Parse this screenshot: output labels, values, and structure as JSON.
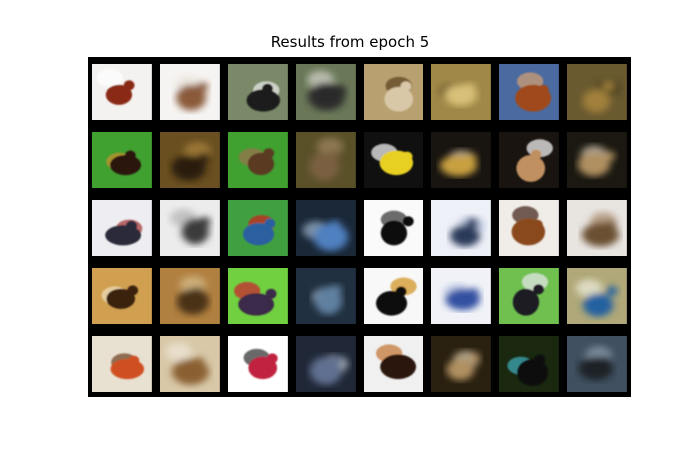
{
  "title": "Results from epoch 5",
  "colors": {
    "figure_background": "#ffffff",
    "grid_background": "#000000",
    "title_text": "#000000"
  },
  "grid": {
    "rows": 5,
    "cols": 8,
    "description_pairs": "each row alternates original image then reconstructed (blurred) image"
  },
  "tiles": [
    {
      "row": 0,
      "col": 0,
      "subject": "brown-horse-on-white",
      "kind": "original",
      "bg": "#f4f2f0",
      "fg": "#8a2a18",
      "accent": "#ffffff"
    },
    {
      "row": 0,
      "col": 1,
      "subject": "brown-horse-on-white",
      "kind": "reconstruction",
      "bg": "#f6f4f2",
      "fg": "#8a5a3a",
      "accent": "#e8e2da"
    },
    {
      "row": 0,
      "col": 2,
      "subject": "bird-on-branch",
      "kind": "original",
      "bg": "#7a8a68",
      "fg": "#1a1a1a",
      "accent": "#f0f0f0"
    },
    {
      "row": 0,
      "col": 3,
      "subject": "bird-on-branch",
      "kind": "reconstruction",
      "bg": "#6a7858",
      "fg": "#2a2a2a",
      "accent": "#d8d8d0"
    },
    {
      "row": 0,
      "col": 4,
      "subject": "small-bird",
      "kind": "original",
      "bg": "#b8a070",
      "fg": "#d8c8a8",
      "accent": "#5a4020"
    },
    {
      "row": 0,
      "col": 5,
      "subject": "small-bird",
      "kind": "reconstruction",
      "bg": "#a08848",
      "fg": "#d8c078",
      "accent": "#5a4a20"
    },
    {
      "row": 0,
      "col": 6,
      "subject": "deer",
      "kind": "original",
      "bg": "#4a6aa0",
      "fg": "#a04a1a",
      "accent": "#d8a070"
    },
    {
      "row": 0,
      "col": 7,
      "subject": "deer",
      "kind": "reconstruction",
      "bg": "#6a5a30",
      "fg": "#a0803a",
      "accent": "#403818"
    },
    {
      "row": 1,
      "col": 0,
      "subject": "turkey",
      "kind": "original",
      "bg": "#40a030",
      "fg": "#2a1810",
      "accent": "#d09030"
    },
    {
      "row": 1,
      "col": 1,
      "subject": "turkey",
      "kind": "reconstruction",
      "bg": "#6a5020",
      "fg": "#2a1a10",
      "accent": "#b08840"
    },
    {
      "row": 1,
      "col": 2,
      "subject": "owl-in-grass",
      "kind": "original",
      "bg": "#40a030",
      "fg": "#5a3a20",
      "accent": "#a07050"
    },
    {
      "row": 1,
      "col": 3,
      "subject": "owl-in-grass",
      "kind": "reconstruction",
      "bg": "#5a5028",
      "fg": "#7a6040",
      "accent": "#a08860"
    },
    {
      "row": 1,
      "col": 4,
      "subject": "yellow-bird",
      "kind": "original",
      "bg": "#101010",
      "fg": "#e8d020",
      "accent": "#ffffff"
    },
    {
      "row": 1,
      "col": 5,
      "subject": "yellow-bird",
      "kind": "reconstruction",
      "bg": "#181410",
      "fg": "#c8a040",
      "accent": "#e0d0b0"
    },
    {
      "row": 1,
      "col": 6,
      "subject": "bird-dark",
      "kind": "original",
      "bg": "#1a1410",
      "fg": "#c09060",
      "accent": "#ffffff"
    },
    {
      "row": 1,
      "col": 7,
      "subject": "bird-dark",
      "kind": "reconstruction",
      "bg": "#1a1810",
      "fg": "#b09060",
      "accent": "#e0d0b8"
    },
    {
      "row": 2,
      "col": 0,
      "subject": "bird-on-white",
      "kind": "original",
      "bg": "#eeeef2",
      "fg": "#2a2a3a",
      "accent": "#a03030"
    },
    {
      "row": 2,
      "col": 1,
      "subject": "bird-on-white",
      "kind": "reconstruction",
      "bg": "#ececec",
      "fg": "#3a3a3a",
      "accent": "#b0b0b0"
    },
    {
      "row": 2,
      "col": 2,
      "subject": "blue-bird",
      "kind": "original",
      "bg": "#40a040",
      "fg": "#2a60a0",
      "accent": "#d02020"
    },
    {
      "row": 2,
      "col": 3,
      "subject": "blue-bird",
      "kind": "reconstruction",
      "bg": "#1a2838",
      "fg": "#5080c0",
      "accent": "#a0b8d0"
    },
    {
      "row": 2,
      "col": 4,
      "subject": "flying-bird",
      "kind": "original",
      "bg": "#fafafa",
      "fg": "#101010",
      "accent": "#303030"
    },
    {
      "row": 2,
      "col": 5,
      "subject": "flying-bird",
      "kind": "reconstruction",
      "bg": "#eef0f8",
      "fg": "#2a3a5a",
      "accent": "#a0b0d0"
    },
    {
      "row": 2,
      "col": 6,
      "subject": "bird-brown",
      "kind": "original",
      "bg": "#f0ece8",
      "fg": "#8a4a1a",
      "accent": "#3a2010"
    },
    {
      "row": 2,
      "col": 7,
      "subject": "bird-brown",
      "kind": "reconstruction",
      "bg": "#e8e4e0",
      "fg": "#6a5030",
      "accent": "#a08060"
    },
    {
      "row": 3,
      "col": 0,
      "subject": "frog",
      "kind": "original",
      "bg": "#d0a050",
      "fg": "#3a2010",
      "accent": "#f0e0c0"
    },
    {
      "row": 3,
      "col": 1,
      "subject": "frog",
      "kind": "reconstruction",
      "bg": "#b08040",
      "fg": "#4a3018",
      "accent": "#d8c090"
    },
    {
      "row": 3,
      "col": 2,
      "subject": "horse-rider",
      "kind": "original",
      "bg": "#70d040",
      "fg": "#3a2a4a",
      "accent": "#d02030"
    },
    {
      "row": 3,
      "col": 3,
      "subject": "horse-rider",
      "kind": "reconstruction",
      "bg": "#203040",
      "fg": "#6080a0",
      "accent": "#c0d0e0"
    },
    {
      "row": 3,
      "col": 4,
      "subject": "small-flying-bird",
      "kind": "original",
      "bg": "#f8f8f8",
      "fg": "#101010",
      "accent": "#d09020"
    },
    {
      "row": 3,
      "col": 5,
      "subject": "small-flying-bird",
      "kind": "reconstruction",
      "bg": "#f0f2f8",
      "fg": "#3050a0",
      "accent": "#b0c0e0"
    },
    {
      "row": 3,
      "col": 6,
      "subject": "ostrich",
      "kind": "original",
      "bg": "#70c050",
      "fg": "#1a1a20",
      "accent": "#e8e8f0"
    },
    {
      "row": 3,
      "col": 7,
      "subject": "ostrich",
      "kind": "reconstruction",
      "bg": "#b0a878",
      "fg": "#2060a0",
      "accent": "#f0f0e0"
    },
    {
      "row": 4,
      "col": 0,
      "subject": "dog",
      "kind": "original",
      "bg": "#e8e0d0",
      "fg": "#d05020",
      "accent": "#6a3a18"
    },
    {
      "row": 4,
      "col": 1,
      "subject": "dog",
      "kind": "reconstruction",
      "bg": "#d8c8a8",
      "fg": "#8a6030",
      "accent": "#f0e8d8"
    },
    {
      "row": 4,
      "col": 2,
      "subject": "red-truck",
      "kind": "original",
      "bg": "#ffffff",
      "fg": "#c02040",
      "accent": "#2a2a2a"
    },
    {
      "row": 4,
      "col": 3,
      "subject": "red-truck",
      "kind": "reconstruction",
      "bg": "#202838",
      "fg": "#607090",
      "accent": "#d0d8e0"
    },
    {
      "row": 4,
      "col": 4,
      "subject": "cat",
      "kind": "original",
      "bg": "#f0f0f0",
      "fg": "#2a1810",
      "accent": "#c07030"
    },
    {
      "row": 4,
      "col": 5,
      "subject": "cat",
      "kind": "reconstruction",
      "bg": "#2a2010",
      "fg": "#b09060",
      "accent": "#e0d0b0"
    },
    {
      "row": 4,
      "col": 6,
      "subject": "dark-bird",
      "kind": "original",
      "bg": "#1a2810",
      "fg": "#0a0a0a",
      "accent": "#40b0c0"
    },
    {
      "row": 4,
      "col": 7,
      "subject": "dark-bird",
      "kind": "reconstruction",
      "bg": "#405060",
      "fg": "#1a2028",
      "accent": "#90a0b0"
    }
  ]
}
